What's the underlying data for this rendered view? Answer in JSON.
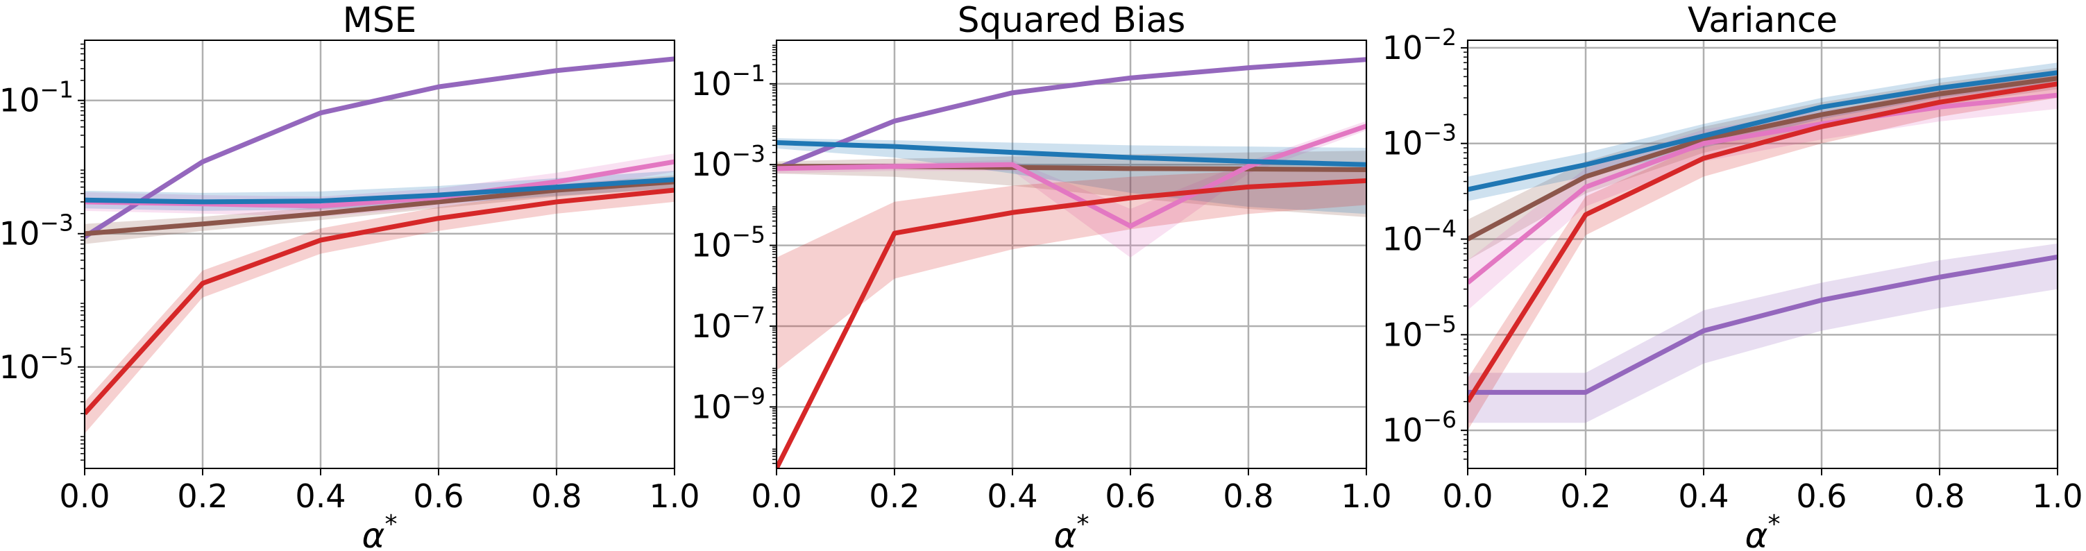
{
  "chart_data": [
    {
      "type": "line",
      "title": "MSE",
      "xlabel": "α*",
      "ylabel": "",
      "yscale": "log",
      "xlim": [
        0,
        1
      ],
      "ylim": [
        3e-07,
        0.8
      ],
      "grid": true,
      "x": [
        0,
        0.2,
        0.4,
        0.6,
        0.8,
        1.0
      ],
      "x_ticks": [
        "0.0",
        "0.2",
        "0.4",
        "0.6",
        "0.8",
        "1.0"
      ],
      "y_ticks": [
        {
          "value": 1e-05,
          "label": "10^-5"
        },
        {
          "value": 0.001,
          "label": "10^-3"
        },
        {
          "value": 0.1,
          "label": "10^-1"
        }
      ],
      "series": [
        {
          "color": "#9467bd",
          "values": [
            0.0009,
            0.012,
            0.065,
            0.16,
            0.28,
            0.42
          ],
          "lower": [
            0.0008,
            0.011,
            0.06,
            0.15,
            0.26,
            0.39
          ],
          "upper": [
            0.001,
            0.013,
            0.07,
            0.17,
            0.3,
            0.45
          ]
        },
        {
          "color": "#8c564b",
          "values": [
            0.001,
            0.0014,
            0.002,
            0.003,
            0.0045,
            0.006
          ],
          "lower": [
            0.0007,
            0.0011,
            0.0016,
            0.0024,
            0.0036,
            0.0048
          ],
          "upper": [
            0.0014,
            0.0018,
            0.0025,
            0.0037,
            0.0055,
            0.0075
          ]
        },
        {
          "color": "#e377c2",
          "values": [
            0.003,
            0.0028,
            0.0026,
            0.0035,
            0.006,
            0.012
          ],
          "lower": [
            0.0022,
            0.002,
            0.0018,
            0.0025,
            0.0043,
            0.0085
          ],
          "upper": [
            0.0042,
            0.0038,
            0.0036,
            0.0048,
            0.0082,
            0.016
          ]
        },
        {
          "color": "#1f77b4",
          "values": [
            0.0032,
            0.003,
            0.0031,
            0.0038,
            0.005,
            0.0065
          ],
          "lower": [
            0.0024,
            0.0022,
            0.0023,
            0.0028,
            0.0037,
            0.0048
          ],
          "upper": [
            0.0044,
            0.0041,
            0.0043,
            0.0052,
            0.0068,
            0.0088
          ]
        },
        {
          "color": "#d62728",
          "values": [
            2e-06,
            0.00018,
            0.0008,
            0.0017,
            0.003,
            0.0045
          ],
          "lower": [
            1e-06,
            0.00011,
            0.0005,
            0.0011,
            0.002,
            0.003
          ],
          "upper": [
            3e-06,
            0.00028,
            0.0012,
            0.0025,
            0.0044,
            0.0065
          ]
        }
      ]
    },
    {
      "type": "line",
      "title": "Squared Bias",
      "xlabel": "α*",
      "ylabel": "",
      "yscale": "log",
      "xlim": [
        0,
        1
      ],
      "ylim": [
        3e-11,
        1.2
      ],
      "grid": true,
      "x": [
        0,
        0.2,
        0.4,
        0.6,
        0.8,
        1.0
      ],
      "x_ticks": [
        "0.0",
        "0.2",
        "0.4",
        "0.6",
        "0.8",
        "1.0"
      ],
      "y_ticks": [
        {
          "value": 1e-09,
          "label": "10^-9"
        },
        {
          "value": 1e-07,
          "label": "10^-7"
        },
        {
          "value": 1e-05,
          "label": "10^-5"
        },
        {
          "value": 0.001,
          "label": "10^-3"
        },
        {
          "value": 0.1,
          "label": "10^-1"
        }
      ],
      "series": [
        {
          "color": "#9467bd",
          "values": [
            0.0008,
            0.012,
            0.06,
            0.14,
            0.25,
            0.4
          ],
          "lower": [
            0.0007,
            0.011,
            0.055,
            0.13,
            0.23,
            0.37
          ],
          "upper": [
            0.0009,
            0.013,
            0.065,
            0.15,
            0.27,
            0.43
          ]
        },
        {
          "color": "#8c564b",
          "values": [
            0.0009,
            0.0009,
            0.00085,
            0.0008,
            0.00078,
            0.00075
          ],
          "lower": [
            0.0006,
            0.0005,
            0.0003,
            0.00015,
            8e-05,
            5e-05
          ],
          "upper": [
            0.0012,
            0.0014,
            0.0016,
            0.0018,
            0.002,
            0.0022
          ]
        },
        {
          "color": "#e377c2",
          "values": [
            0.0008,
            0.0009,
            0.001,
            3e-05,
            0.0009,
            0.009
          ],
          "lower": [
            0.0006,
            0.0007,
            0.0007,
            5e-06,
            0.0006,
            0.007
          ],
          "upper": [
            0.001,
            0.0011,
            0.0013,
            8e-05,
            0.0012,
            0.012
          ]
        },
        {
          "color": "#1f77b4",
          "values": [
            0.0035,
            0.0028,
            0.002,
            0.0015,
            0.0012,
            0.001
          ],
          "lower": [
            0.0025,
            0.0015,
            0.0006,
            0.0002,
            9e-05,
            6e-05
          ],
          "upper": [
            0.0045,
            0.004,
            0.0035,
            0.003,
            0.0028,
            0.0026
          ]
        },
        {
          "color": "#d62728",
          "values": [
            3e-11,
            2e-05,
            6.5e-05,
            0.00015,
            0.00028,
            0.0004
          ],
          "lower": [
            8e-09,
            1.5e-06,
            8e-06,
            2.5e-05,
            6e-05,
            0.0001
          ],
          "upper": [
            5e-06,
            0.00012,
            0.0003,
            0.0005,
            0.0007,
            0.0008
          ]
        }
      ]
    },
    {
      "type": "line",
      "title": "Variance",
      "xlabel": "α*",
      "ylabel": "",
      "yscale": "log",
      "xlim": [
        0,
        1
      ],
      "ylim": [
        4e-07,
        0.012
      ],
      "grid": true,
      "x": [
        0,
        0.2,
        0.4,
        0.6,
        0.8,
        1.0
      ],
      "x_ticks": [
        "0.0",
        "0.2",
        "0.4",
        "0.6",
        "0.8",
        "1.0"
      ],
      "y_ticks": [
        {
          "value": 1e-06,
          "label": "10^-6"
        },
        {
          "value": 1e-05,
          "label": "10^-5"
        },
        {
          "value": 0.0001,
          "label": "10^-4"
        },
        {
          "value": 0.001,
          "label": "10^-3"
        },
        {
          "value": 0.01,
          "label": "10^-2"
        }
      ],
      "series": [
        {
          "color": "#9467bd",
          "values": [
            2.5e-06,
            2.5e-06,
            1.1e-05,
            2.3e-05,
            4e-05,
            6.5e-05
          ],
          "lower": [
            1.2e-06,
            1.2e-06,
            5e-06,
            1.1e-05,
            1.9e-05,
            3e-05
          ],
          "upper": [
            4e-06,
            4e-06,
            1.8e-05,
            3.5e-05,
            6e-05,
            9e-05
          ]
        },
        {
          "color": "#8c564b",
          "values": [
            0.0001,
            0.00045,
            0.0011,
            0.002,
            0.0033,
            0.0048
          ],
          "lower": [
            6e-05,
            0.0003,
            0.0008,
            0.0015,
            0.0025,
            0.0037
          ],
          "upper": [
            0.00016,
            0.00065,
            0.0015,
            0.0027,
            0.0043,
            0.0062
          ]
        },
        {
          "color": "#e377c2",
          "values": [
            3.5e-05,
            0.00035,
            0.001,
            0.0016,
            0.0024,
            0.0032
          ],
          "lower": [
            1.8e-05,
            0.00022,
            0.00065,
            0.0011,
            0.0017,
            0.0023
          ],
          "upper": [
            6e-05,
            0.00055,
            0.0014,
            0.0022,
            0.0033,
            0.0044
          ]
        },
        {
          "color": "#1f77b4",
          "values": [
            0.00033,
            0.0006,
            0.0012,
            0.0024,
            0.0038,
            0.0055
          ],
          "lower": [
            0.00025,
            0.00045,
            0.0009,
            0.0018,
            0.003,
            0.0043
          ],
          "upper": [
            0.00045,
            0.0008,
            0.0016,
            0.003,
            0.0048,
            0.007
          ]
        },
        {
          "color": "#d62728",
          "values": [
            2e-06,
            0.00018,
            0.0007,
            0.0015,
            0.0027,
            0.0042
          ],
          "lower": [
            1e-06,
            0.00011,
            0.00045,
            0.001,
            0.0019,
            0.003
          ],
          "upper": [
            3.5e-06,
            0.00028,
            0.001,
            0.0021,
            0.0037,
            0.0058
          ]
        }
      ]
    }
  ]
}
